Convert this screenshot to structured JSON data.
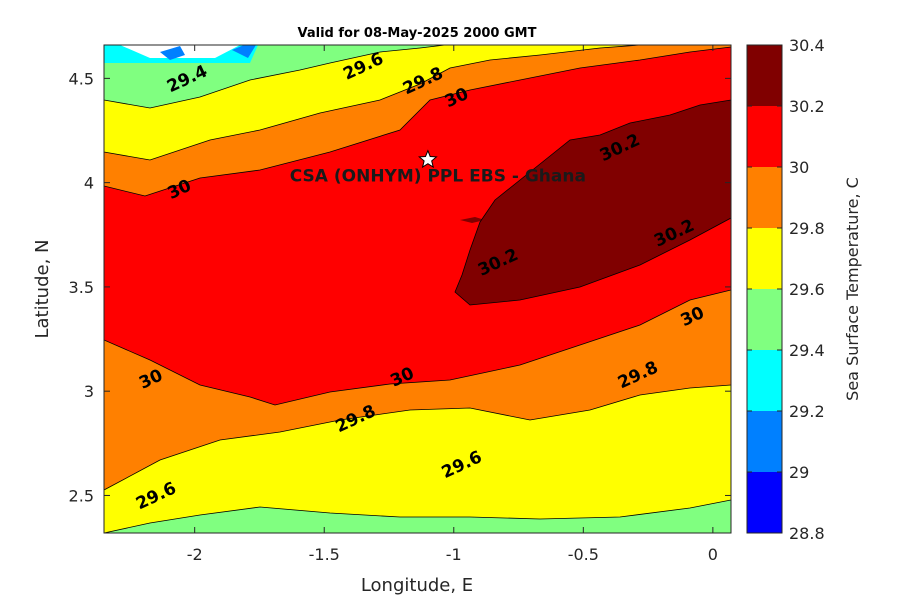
{
  "chart_data": {
    "type": "contour",
    "title": "Valid for 08-May-2025 2000 GMT",
    "xlabel": "Longitude, E",
    "ylabel": "Latitude, N",
    "xlim": [
      -2.35,
      0.07
    ],
    "ylim": [
      2.32,
      4.66
    ],
    "xticks": [
      -2,
      -1.5,
      -1,
      -0.5,
      0
    ],
    "xtick_labels": [
      "-2",
      "-1.5",
      "-1",
      "-0.5",
      "0"
    ],
    "yticks": [
      2.5,
      3,
      3.5,
      4,
      4.5
    ],
    "ytick_labels": [
      "2.5",
      "3",
      "3.5",
      "4",
      "4.5"
    ],
    "colorbar": {
      "label": "Sea Surface Temperature, C",
      "levels": [
        28.8,
        29.0,
        29.2,
        29.4,
        29.6,
        29.8,
        30.0,
        30.2,
        30.4
      ],
      "level_labels": [
        "28.8",
        "29",
        "29.2",
        "29.4",
        "29.6",
        "29.8",
        "30",
        "30.2",
        "30.4"
      ],
      "colors": [
        "#0000ff",
        "#0080ff",
        "#00ffff",
        "#80ff80",
        "#ffff00",
        "#ff8000",
        "#ff0000",
        "#800000"
      ]
    },
    "site": {
      "label": "CSA (ONHYM) PPL EBS  - Ghana",
      "lon": -1.1,
      "lat": 4.11,
      "marker": "white-star"
    },
    "contour_labels": [
      {
        "text": "29.4",
        "lon": -2.03,
        "lat": 4.5
      },
      {
        "text": "29.6",
        "lon": -1.35,
        "lat": 4.56
      },
      {
        "text": "29.8",
        "lon": -1.12,
        "lat": 4.49
      },
      {
        "text": "30",
        "lon": -0.99,
        "lat": 4.41
      },
      {
        "text": "30.2",
        "lon": -0.36,
        "lat": 4.17
      },
      {
        "text": "30",
        "lon": -2.06,
        "lat": 3.97
      },
      {
        "text": "30.2",
        "lon": -0.83,
        "lat": 3.62
      },
      {
        "text": "30.2",
        "lon": -0.15,
        "lat": 3.76
      },
      {
        "text": "30",
        "lon": -0.08,
        "lat": 3.36
      },
      {
        "text": "30",
        "lon": -2.17,
        "lat": 3.06
      },
      {
        "text": "30",
        "lon": -1.2,
        "lat": 3.07
      },
      {
        "text": "29.8",
        "lon": -1.38,
        "lat": 2.87
      },
      {
        "text": "29.8",
        "lon": -0.29,
        "lat": 3.08
      },
      {
        "text": "29.6",
        "lon": -0.97,
        "lat": 2.65
      },
      {
        "text": "29.6",
        "lon": -2.15,
        "lat": 2.5
      }
    ]
  }
}
